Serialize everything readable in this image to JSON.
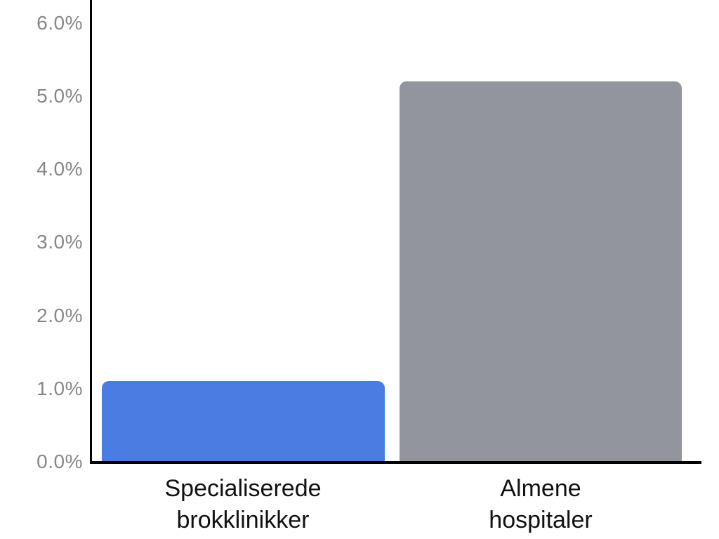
{
  "chart_data": {
    "type": "bar",
    "categories": [
      "Specialiserede brokklinikker",
      "Almene hospitaler"
    ],
    "category_lines": [
      [
        "Specialiserede",
        "brokklinikker"
      ],
      [
        "Almene",
        "hospitaler"
      ]
    ],
    "values": [
      1.1,
      5.2
    ],
    "value_unit": "%",
    "bar_colors": [
      "#4A7CE2",
      "#92959D"
    ],
    "yticks": {
      "values": [
        0,
        1,
        2,
        3,
        4,
        5,
        6
      ],
      "labels": [
        "0.0%",
        "1.0%",
        "2.0%",
        "3.0%",
        "4.0%",
        "5.0%",
        "6.0%"
      ]
    },
    "ylim": [
      0,
      6.3
    ],
    "grid": false,
    "legend": false,
    "colors": {
      "axis": "#000000",
      "tick_label": "#878787",
      "category_label": "#111111",
      "background": "#FFFFFF"
    }
  }
}
